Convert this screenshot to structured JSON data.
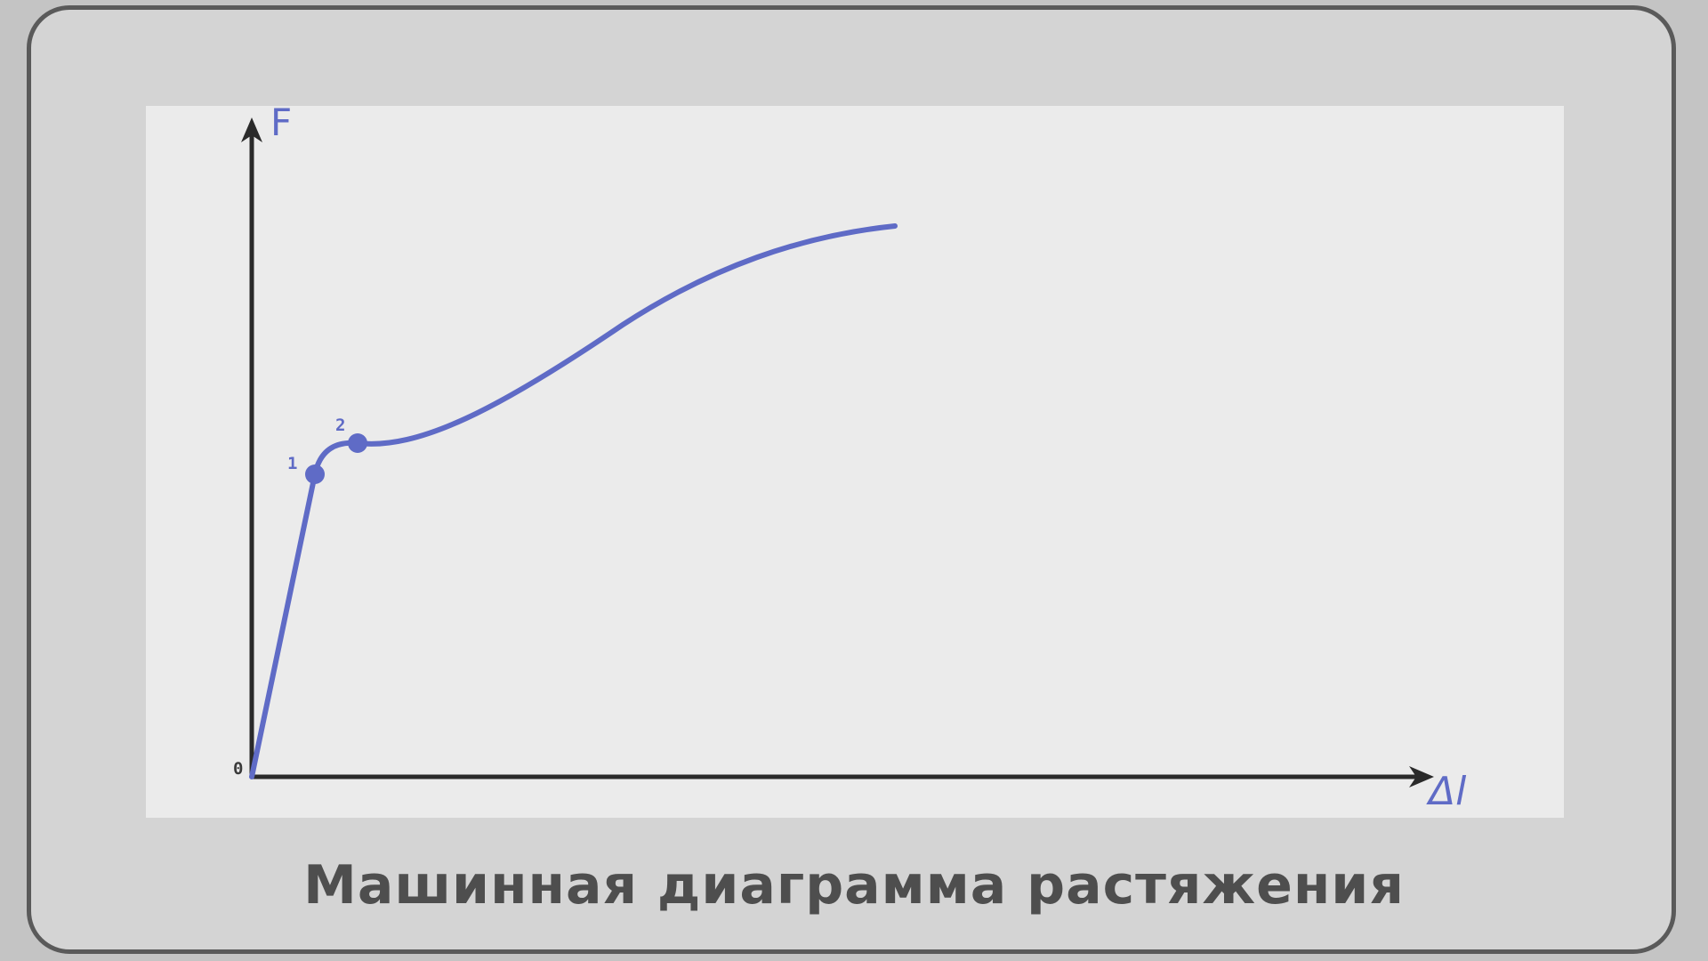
{
  "diagram": {
    "title": "Машинная диаграмма растяжения",
    "y_axis_label": "F",
    "x_axis_label": "Δl",
    "origin_label": "0",
    "points": [
      {
        "label": "1"
      },
      {
        "label": "2"
      }
    ]
  },
  "colors": {
    "curve": "#5f6bc6",
    "axes": "#2a2a2a",
    "panel": "#ebebeb",
    "frame_fill": "#d4d4d4",
    "frame_border": "#5a5a5a",
    "caption": "#4e4e4e"
  }
}
